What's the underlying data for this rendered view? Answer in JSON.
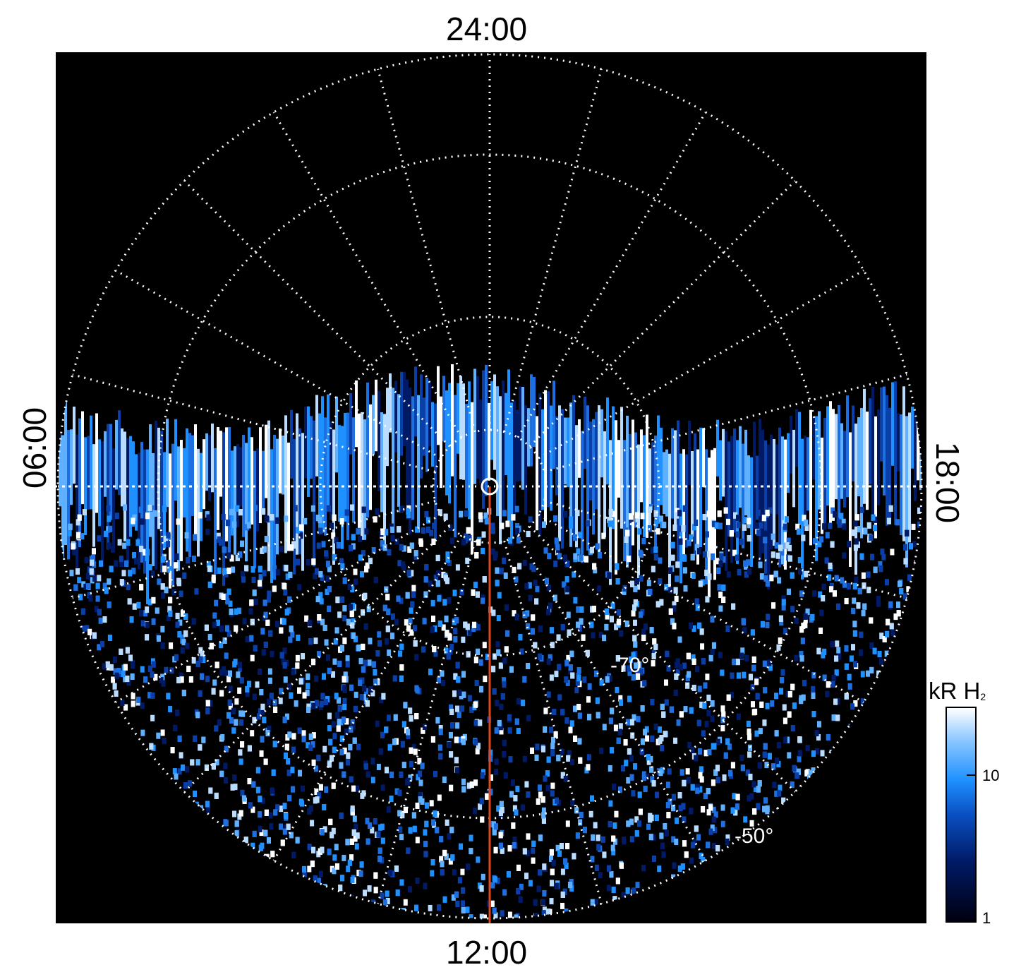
{
  "labels": {
    "top": "24:00",
    "bottom": "12:00",
    "left": "06:00",
    "right": "18:00"
  },
  "latitude_labels": [
    "-70°",
    "-50°"
  ],
  "colorbar": {
    "title_main": "kR H",
    "title_sub": "2",
    "ticks": [
      "10",
      "1"
    ]
  },
  "colors": {
    "background": "#000000",
    "grid": "#ffffff",
    "meridian_line": "#e0471a",
    "emission_dark": "#001a66",
    "emission_mid": "#1e90ff",
    "emission_light": "#ffffff"
  }
}
